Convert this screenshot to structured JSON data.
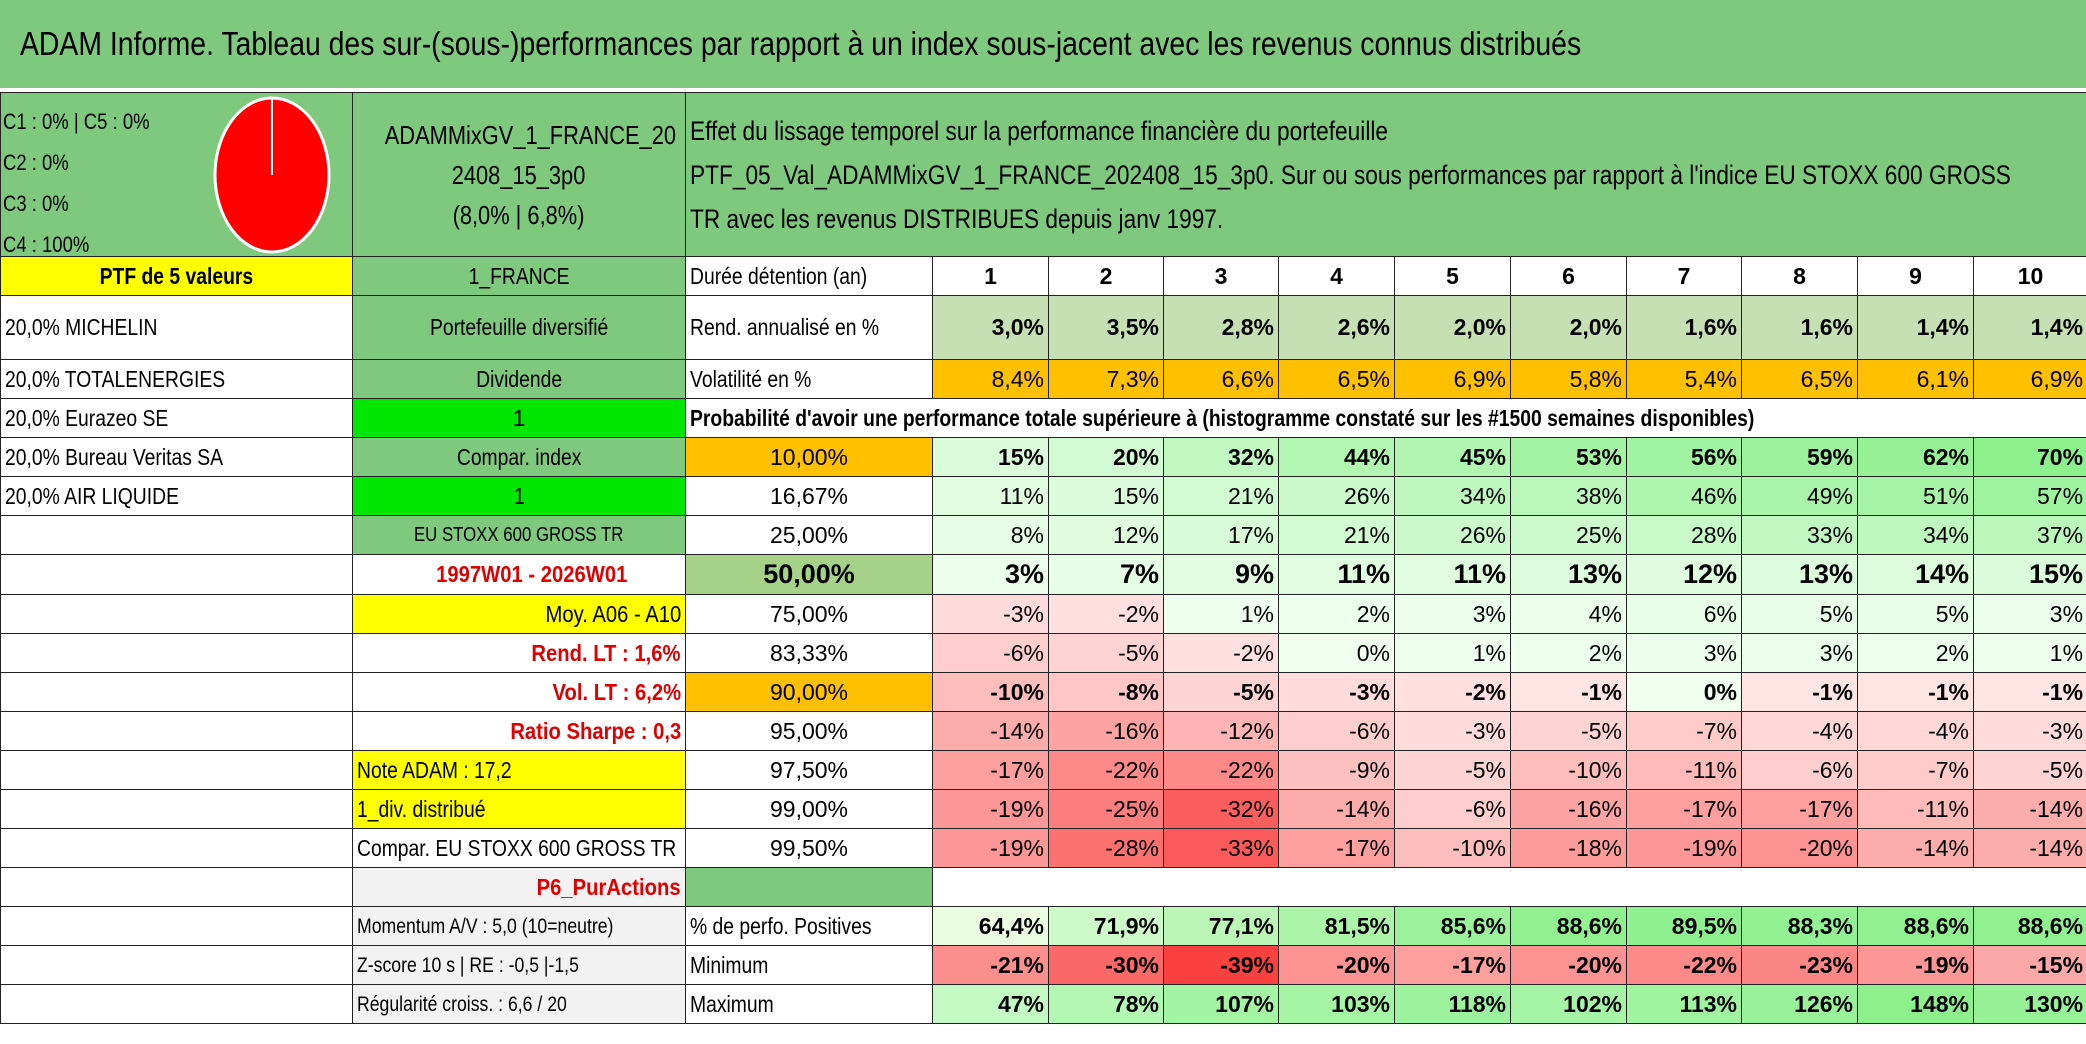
{
  "title": "ADAM Informe. Tableau des sur-(sous-)performances par rapport à un index sous-jacent avec les revenus connus distribués",
  "legend": [
    "C1 : 0% | C5 : 0%",
    "C2 : 0%",
    "C3 : 0%",
    "C4 : 100%"
  ],
  "portfolio_name": [
    "ADAMMixGV_1_FRANCE_20",
    "2408_15_3p0",
    "(8,0% | 6,8%)"
  ],
  "description": [
    "Effet du lissage temporel sur la performance financière du portefeuille",
    "PTF_05_Val_ADAMMixGV_1_FRANCE_202408_15_3p0. Sur ou sous performances par rapport à l'indice EU STOXX 600 GROSS",
    "TR avec les revenus DISTRIBUES depuis janv 1997."
  ],
  "ptf_label": "PTF de 5 valeurs",
  "holdings": [
    "20,0% MICHELIN",
    "20,0% TOTALENERGIES",
    "20,0% Eurazeo SE",
    "20,0% Bureau Veritas SA",
    "20,0% AIR LIQUIDE"
  ],
  "side": {
    "france": "1_FRANCE",
    "diversified": "Portefeuille diversifié",
    "dividend": "Dividende",
    "one_a": "1",
    "compar_index": "Compar. index",
    "one_b": "1",
    "index_name": "EU STOXX 600 GROSS TR",
    "period": "1997W01 - 2026W01",
    "moy": "Moy. A06 - A10",
    "rend_lt": "Rend. LT : 1,6%",
    "vol_lt": "Vol. LT : 6,2%",
    "sharpe": "Ratio Sharpe : 0,3",
    "note": "Note ADAM : 17,2",
    "div": "1_div. distribué",
    "compar_full": "Compar. EU STOXX 600 GROSS TR",
    "p6": "P6_PurActions",
    "momentum": "Momentum A/V : 5,0 (10=neutre)",
    "zscore": "Z-score 10 s | RE : -0,5 |-1,5",
    "regularite": "Régularité croiss. : 6,6 / 20"
  },
  "table": {
    "duree_label": "Durée détention (an)",
    "years": [
      "1",
      "2",
      "3",
      "4",
      "5",
      "6",
      "7",
      "8",
      "9",
      "10"
    ],
    "rend_label": "Rend. annualisé en %",
    "rend": [
      "3,0%",
      "3,5%",
      "2,8%",
      "2,6%",
      "2,0%",
      "2,0%",
      "1,6%",
      "1,6%",
      "1,4%",
      "1,4%"
    ],
    "vol_label": "Volatilité en %",
    "vol": [
      "8,4%",
      "7,3%",
      "6,6%",
      "6,5%",
      "6,9%",
      "5,8%",
      "5,4%",
      "6,5%",
      "6,1%",
      "6,9%"
    ],
    "prob_label": "Probabilité d'avoir une performance totale supérieure à (histogramme constaté sur les #1500 semaines disponibles)",
    "quantiles": [
      {
        "q": "10,00%",
        "vals": [
          "15%",
          "20%",
          "32%",
          "44%",
          "45%",
          "53%",
          "56%",
          "59%",
          "62%",
          "70%"
        ]
      },
      {
        "q": "16,67%",
        "vals": [
          "11%",
          "15%",
          "21%",
          "26%",
          "34%",
          "38%",
          "46%",
          "49%",
          "51%",
          "57%"
        ]
      },
      {
        "q": "25,00%",
        "vals": [
          "8%",
          "12%",
          "17%",
          "21%",
          "26%",
          "25%",
          "28%",
          "33%",
          "34%",
          "37%"
        ]
      },
      {
        "q": "50,00%",
        "vals": [
          "3%",
          "7%",
          "9%",
          "11%",
          "11%",
          "13%",
          "12%",
          "13%",
          "14%",
          "15%"
        ]
      },
      {
        "q": "75,00%",
        "vals": [
          "-3%",
          "-2%",
          "1%",
          "2%",
          "3%",
          "4%",
          "6%",
          "5%",
          "5%",
          "3%"
        ]
      },
      {
        "q": "83,33%",
        "vals": [
          "-6%",
          "-5%",
          "-2%",
          "0%",
          "1%",
          "2%",
          "3%",
          "3%",
          "2%",
          "1%"
        ]
      },
      {
        "q": "90,00%",
        "vals": [
          "-10%",
          "-8%",
          "-5%",
          "-3%",
          "-2%",
          "-1%",
          "0%",
          "-1%",
          "-1%",
          "-1%"
        ]
      },
      {
        "q": "95,00%",
        "vals": [
          "-14%",
          "-16%",
          "-12%",
          "-6%",
          "-3%",
          "-5%",
          "-7%",
          "-4%",
          "-4%",
          "-3%"
        ]
      },
      {
        "q": "97,50%",
        "vals": [
          "-17%",
          "-22%",
          "-22%",
          "-9%",
          "-5%",
          "-10%",
          "-11%",
          "-6%",
          "-7%",
          "-5%"
        ]
      },
      {
        "q": "99,00%",
        "vals": [
          "-19%",
          "-25%",
          "-32%",
          "-14%",
          "-6%",
          "-16%",
          "-17%",
          "-17%",
          "-11%",
          "-14%"
        ]
      },
      {
        "q": "99,50%",
        "vals": [
          "-19%",
          "-28%",
          "-33%",
          "-17%",
          "-10%",
          "-18%",
          "-19%",
          "-20%",
          "-14%",
          "-14%"
        ]
      }
    ],
    "pos_label": "% de perfo. Positives",
    "pos": [
      "64,4%",
      "71,9%",
      "77,1%",
      "81,5%",
      "85,6%",
      "88,6%",
      "89,5%",
      "88,3%",
      "88,6%",
      "88,6%"
    ],
    "min_label": "Minimum",
    "min": [
      "-21%",
      "-30%",
      "-39%",
      "-20%",
      "-17%",
      "-20%",
      "-22%",
      "-23%",
      "-19%",
      "-15%"
    ],
    "max_label": "Maximum",
    "max": [
      "47%",
      "78%",
      "107%",
      "103%",
      "118%",
      "102%",
      "113%",
      "126%",
      "148%",
      "130%"
    ]
  }
}
